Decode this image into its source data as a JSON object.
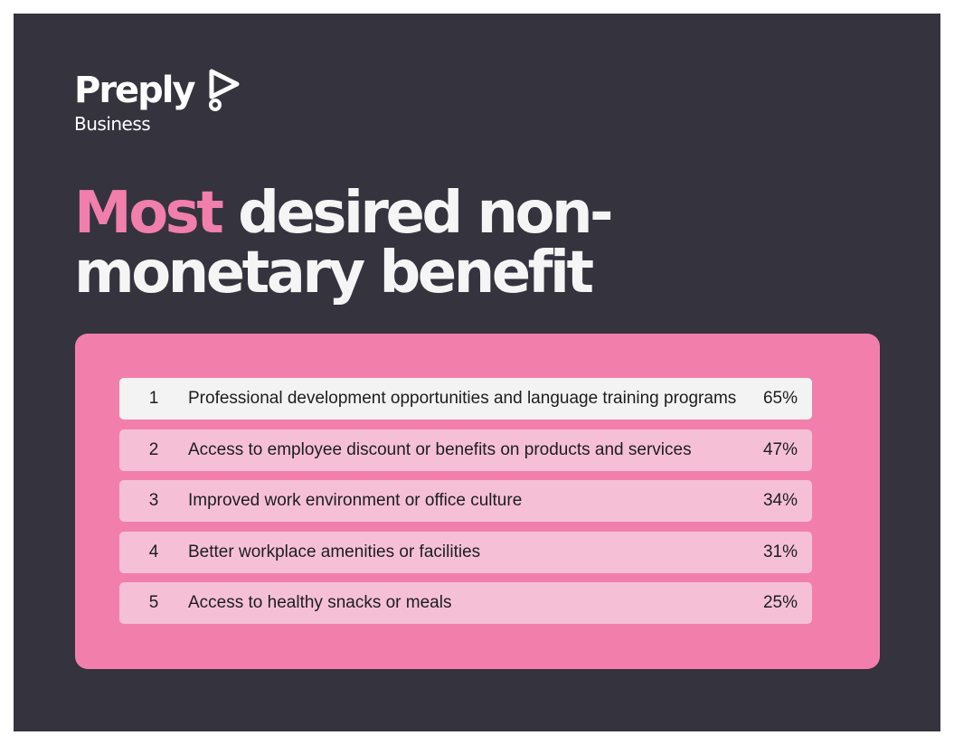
{
  "brand": {
    "name": "Preply",
    "sub": "Business"
  },
  "title": {
    "highlight": "Most",
    "rest": " desired non-monetary benefit"
  },
  "colors": {
    "background": "#35333d",
    "accent": "#f07fab",
    "panel": "#f27fab",
    "row_highlight": "#f3f3f3",
    "row": "#f5c0d6"
  },
  "benefits": [
    {
      "rank": "1",
      "label": "Professional development opportunities and language training programs",
      "percent": "65%"
    },
    {
      "rank": "2",
      "label": "Access to employee discount or benefits on products and services",
      "percent": "47%"
    },
    {
      "rank": "3",
      "label": "Improved work environment or office culture",
      "percent": "34%"
    },
    {
      "rank": "4",
      "label": "Better workplace amenities or facilities",
      "percent": "31%"
    },
    {
      "rank": "5",
      "label": "Access to healthy snacks or meals",
      "percent": "25%"
    }
  ]
}
